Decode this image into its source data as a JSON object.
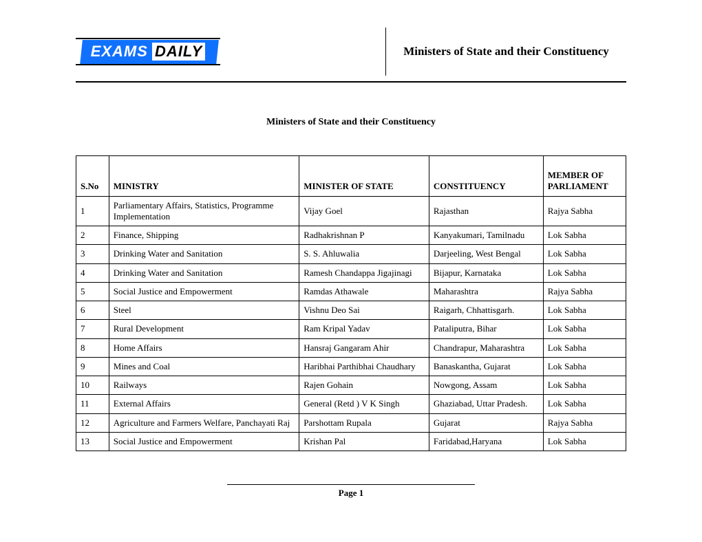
{
  "logo": {
    "part1": "EXAMS",
    "part2": "DAILY"
  },
  "header_title": "Ministers of State and their Constituency",
  "body_title": "Ministers of State and their Constituency",
  "table": {
    "columns": [
      "S.No",
      "MINISTRY",
      "MINISTER OF STATE",
      "CONSTITUENCY",
      "MEMBER OF PARLIAMENT"
    ],
    "rows": [
      [
        "1",
        "Parliamentary Affairs, Statistics, Programme Implementation",
        "Vijay Goel",
        "Rajasthan",
        "Rajya Sabha"
      ],
      [
        "2",
        "Finance, Shipping",
        "Radhakrishnan P",
        "Kanyakumari, Tamilnadu",
        "Lok Sabha"
      ],
      [
        "3",
        "Drinking Water and Sanitation",
        "S. S. Ahluwalia",
        "Darjeeling, West Bengal",
        "Lok Sabha"
      ],
      [
        "4",
        "Drinking Water and Sanitation",
        "Ramesh Chandappa Jigajinagi",
        "Bijapur, Karnataka",
        "Lok Sabha"
      ],
      [
        "5",
        "Social Justice and Empowerment",
        "Ramdas Athawale",
        "Maharashtra",
        "Rajya Sabha"
      ],
      [
        "6",
        "Steel",
        "Vishnu Deo Sai",
        "Raigarh, Chhattisgarh.",
        "Lok Sabha"
      ],
      [
        "7",
        "Rural Development",
        "Ram Kripal Yadav",
        "Pataliputra, Bihar",
        "Lok Sabha"
      ],
      [
        "8",
        "Home Affairs",
        "Hansraj Gangaram Ahir",
        "Chandrapur, Maharashtra",
        "Lok Sabha"
      ],
      [
        "9",
        "Mines and Coal",
        "Haribhai Parthibhai Chaudhary",
        "Banaskantha, Gujarat",
        "Lok Sabha"
      ],
      [
        "10",
        "Railways",
        "Rajen Gohain",
        "Nowgong, Assam",
        "Lok Sabha"
      ],
      [
        "11",
        "External Affairs",
        "General (Retd ) V K Singh",
        "Ghaziabad, Uttar Pradesh.",
        "Lok Sabha"
      ],
      [
        "12",
        "Agriculture and Farmers Welfare, Panchayati Raj",
        "Parshottam Rupala",
        "Gujarat",
        "Rajya Sabha"
      ],
      [
        "13",
        "Social Justice and Empowerment",
        "Krishan Pal",
        "Faridabad,Haryana",
        "Lok Sabha"
      ]
    ]
  },
  "footer": "Page 1"
}
